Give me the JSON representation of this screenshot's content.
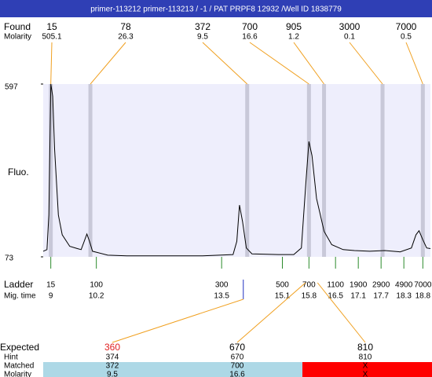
{
  "header": {
    "title": "primer-113212  primer-113213 / -1 / PAT PRPF8 12932 /Well ID 1838779"
  },
  "found": {
    "label": "Found",
    "molarity_label": "Molarity",
    "sizes": [
      15,
      78,
      372,
      700,
      905,
      3000,
      7000
    ],
    "molarity": [
      505.1,
      26.3,
      9.5,
      16.6,
      1.2,
      0.1,
      0.5
    ]
  },
  "plot": {
    "y_label": "Fluo.",
    "ylim": [
      73,
      597
    ],
    "yticks": [
      597,
      73
    ],
    "xlim": [
      8.8,
      19
    ],
    "trace": {
      "x": [
        8.8,
        8.9,
        8.95,
        9.0,
        9.05,
        9.1,
        9.2,
        9.3,
        9.5,
        9.7,
        9.8,
        9.88,
        9.95,
        10.02,
        10.1,
        10.5,
        11,
        12,
        13,
        13.8,
        13.9,
        13.97,
        14.05,
        14.15,
        14.3,
        15,
        15.4,
        15.6,
        15.72,
        15.8,
        15.88,
        16.0,
        16.2,
        16.4,
        16.7,
        17.0,
        17.4,
        17.8,
        18.2,
        18.5,
        18.62,
        18.7,
        18.8,
        18.9,
        19.0
      ],
      "values": [
        90,
        95,
        200,
        597,
        560,
        400,
        200,
        140,
        105,
        98,
        95,
        120,
        142,
        120,
        90,
        78,
        76,
        76,
        76,
        80,
        120,
        230,
        180,
        100,
        82,
        80,
        80,
        100,
        300,
        423,
        380,
        250,
        150,
        110,
        95,
        92,
        90,
        92,
        88,
        100,
        140,
        152,
        125,
        100,
        98
      ]
    }
  },
  "ladder": {
    "label": "Ladder",
    "time_label": "Mig. time",
    "sizes": [
      15,
      100,
      300,
      500,
      700,
      1100,
      1900,
      2900,
      4900,
      7000
    ],
    "times": [
      9,
      10.2,
      13.5,
      15.1,
      15.8,
      16.5,
      17.1,
      17.7,
      18.3,
      18.8
    ]
  },
  "expected": {
    "label": "Expected",
    "values": [
      360,
      670,
      810
    ],
    "hint_label": "Hint",
    "hint": [
      374,
      670,
      810
    ],
    "matched_label": "Matched",
    "matched": [
      372,
      700,
      "X"
    ],
    "molarity_label": "Molarity",
    "molarity": [
      9.5,
      16.6,
      "X"
    ]
  }
}
